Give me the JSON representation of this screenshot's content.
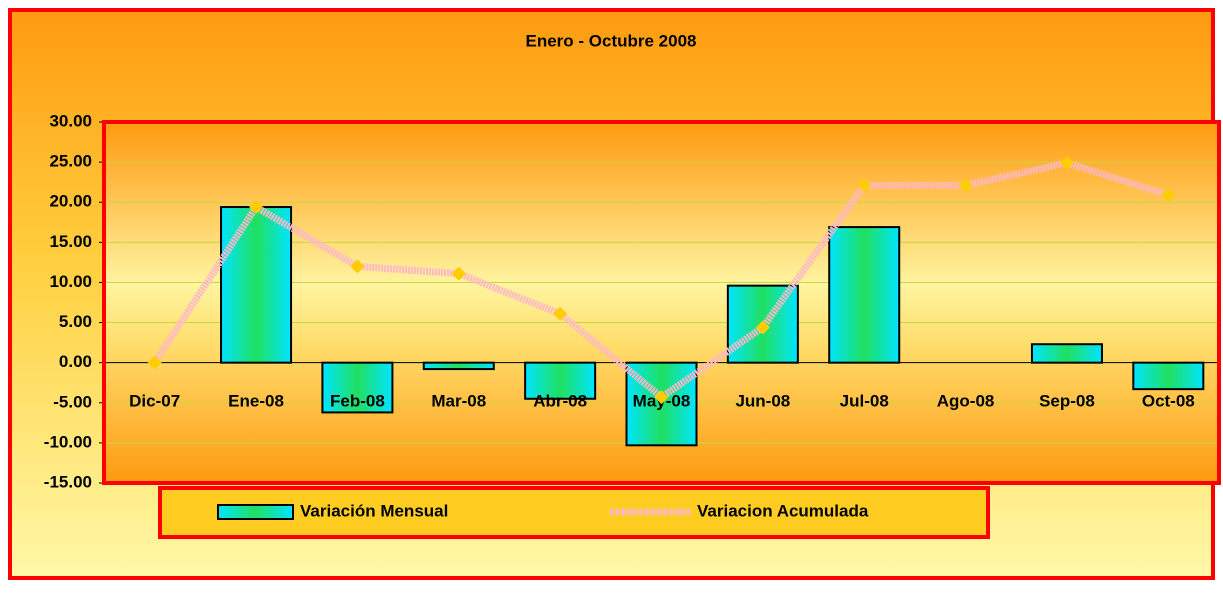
{
  "chart_data": {
    "type": "bar_line",
    "title": "Enero - Octubre 2008",
    "categories": [
      "Dic-07",
      "Ene-08",
      "Feb-08",
      "Mar-08",
      "Abr-08",
      "May-08",
      "Jun-08",
      "Jul-08",
      "Ago-08",
      "Sep-08",
      "Oct-08"
    ],
    "series": [
      {
        "name": "Variación Mensual",
        "type": "bar",
        "color": "#00e5ff",
        "values": [
          0,
          19.4,
          -6.2,
          -0.8,
          -4.5,
          -10.3,
          9.6,
          16.9,
          0,
          2.3,
          -3.3
        ]
      },
      {
        "name": "Variacion Acumulada",
        "type": "line",
        "color": "#ffb8c8",
        "marker_color": "#ffcc00",
        "values": [
          0,
          19.4,
          12.0,
          11.1,
          6.1,
          -4.3,
          4.4,
          22.1,
          22.1,
          24.9,
          20.9
        ]
      }
    ],
    "ylim": [
      -15,
      30
    ],
    "yticks": [
      {
        "value": 30,
        "label": "30.00"
      },
      {
        "value": 25,
        "label": "25.00"
      },
      {
        "value": 20,
        "label": "20.00"
      },
      {
        "value": 15,
        "label": "15.00"
      },
      {
        "value": 10,
        "label": "10.00"
      },
      {
        "value": 5,
        "label": "5.00"
      },
      {
        "value": 0,
        "label": "0.00"
      },
      {
        "value": -5,
        "label": "-5.00"
      },
      {
        "value": -10,
        "label": "-10.00"
      },
      {
        "value": -15,
        "label": "-15.00"
      }
    ],
    "grid": true,
    "legend": "bottom"
  }
}
